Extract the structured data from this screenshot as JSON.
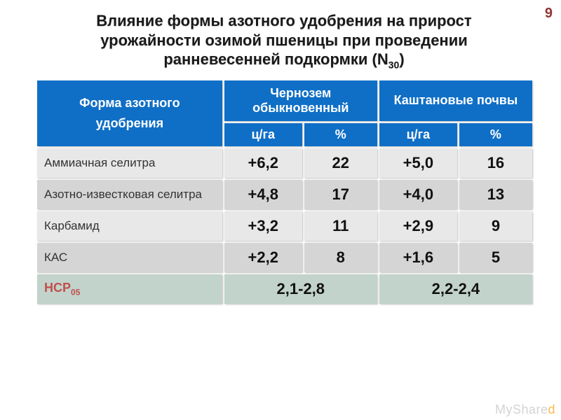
{
  "slide_number": "9",
  "title_line1": "Влияние формы азотного удобрения на прирост",
  "title_line2": "урожайности озимой пшеницы при проведении",
  "title_line3_a": "ранневесенней подкормки (N",
  "title_line3_sub": "30",
  "title_line3_b": ")",
  "header": {
    "form": "Форма азотного удобрения",
    "chernozem": "Чернозем обыкновенный",
    "kashtan": "Каштановые почвы",
    "unit": "ц/га",
    "percent": "%"
  },
  "rows": [
    {
      "label": "Аммиачная селитра",
      "c_val": "+6,2",
      "c_pct": "22",
      "k_val": "+5,0",
      "k_pct": "16",
      "alt": false
    },
    {
      "label": "Азотно-известковая селитра",
      "c_val": "+4,8",
      "c_pct": "17",
      "k_val": "+4,0",
      "k_pct": "13",
      "alt": true
    },
    {
      "label": "Карбамид",
      "c_val": "+3,2",
      "c_pct": "11",
      "k_val": "+2,9",
      "k_pct": "9",
      "alt": false
    },
    {
      "label": "КАС",
      "c_val": "+2,2",
      "c_pct": "8",
      "k_val": "+1,6",
      "k_pct": "5",
      "alt": true
    }
  ],
  "ncp": {
    "label_a": "НСР",
    "label_sub": "05",
    "c_range": "2,1-2,8",
    "k_range": "2,2-2,4"
  },
  "watermark_a": "MyShare",
  "watermark_b": "d",
  "colors": {
    "header_bg": "#0f6fc6",
    "row_bg": "#e8e8e8",
    "row_alt_bg": "#d5d5d5",
    "ncp_bg": "#c2d3cb",
    "ncp_label_color": "#c0504d",
    "slide_num_color": "#923434"
  },
  "col_widths": {
    "label": "38%",
    "val": "16%",
    "pct": "15%"
  }
}
